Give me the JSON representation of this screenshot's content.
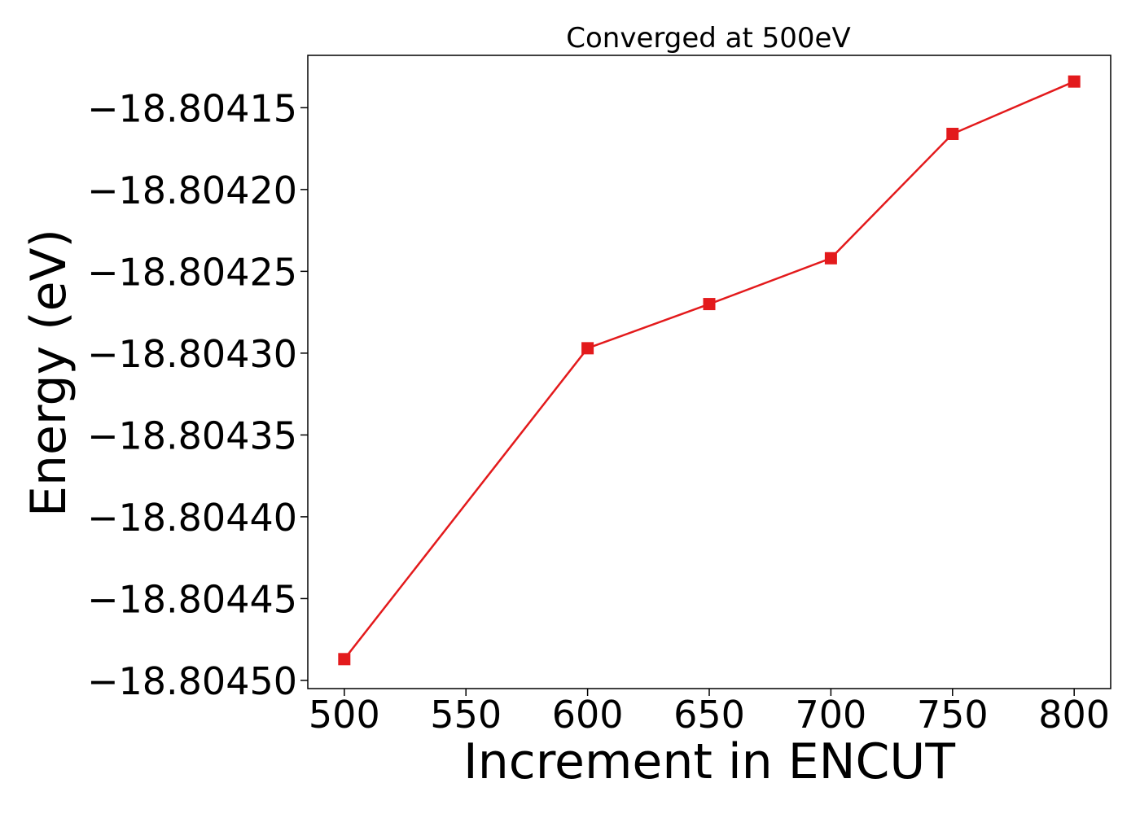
{
  "chart_data": {
    "type": "line",
    "title": "Converged at 500eV",
    "xlabel": "Increment in ENCUT",
    "ylabel": "Energy (eV)",
    "x": [
      500,
      600,
      650,
      700,
      750,
      800
    ],
    "series": [
      {
        "values": [
          -18.804487,
          -18.804297,
          -18.80427,
          -18.804242,
          -18.804166,
          -18.804134
        ],
        "color": "#e31a1c",
        "marker": "square"
      }
    ],
    "xlim": [
      485,
      815
    ],
    "ylim": [
      -18.804505,
      -18.804118
    ],
    "x_ticks": [
      500,
      550,
      600,
      650,
      700,
      750,
      800
    ],
    "x_tick_labels": [
      "500",
      "550",
      "600",
      "650",
      "700",
      "750",
      "800"
    ],
    "y_ticks": [
      -18.8045,
      -18.80445,
      -18.8044,
      -18.80435,
      -18.8043,
      -18.80425,
      -18.8042,
      -18.80415
    ],
    "y_tick_labels": [
      "−18.80450",
      "−18.80445",
      "−18.80440",
      "−18.80435",
      "−18.80430",
      "−18.80425",
      "−18.80420",
      "−18.80415"
    ],
    "grid": false,
    "legend": "none"
  }
}
